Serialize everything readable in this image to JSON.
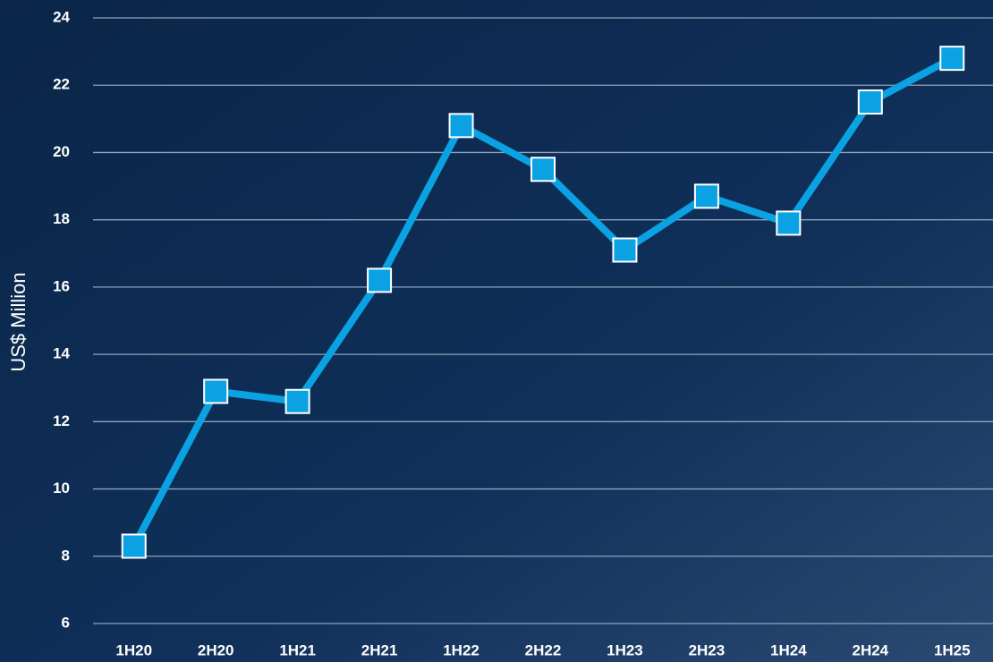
{
  "chart_data": {
    "type": "line",
    "y_label": "US$ Million",
    "categories": [
      "1H20",
      "2H20",
      "1H21",
      "2H21",
      "1H22",
      "2H22",
      "1H23",
      "2H23",
      "1H24",
      "2H24",
      "1H25"
    ],
    "series": [
      {
        "color": "#0aa2e2",
        "values": [
          8.3,
          12.9,
          12.6,
          16.2,
          20.8,
          19.5,
          17.1,
          18.7,
          17.9,
          21.5,
          22.8
        ]
      }
    ],
    "ylim": [
      6,
      24
    ],
    "yticks": [
      6,
      8,
      10,
      12,
      14,
      16,
      18,
      20,
      22,
      24
    ],
    "grid": true
  }
}
